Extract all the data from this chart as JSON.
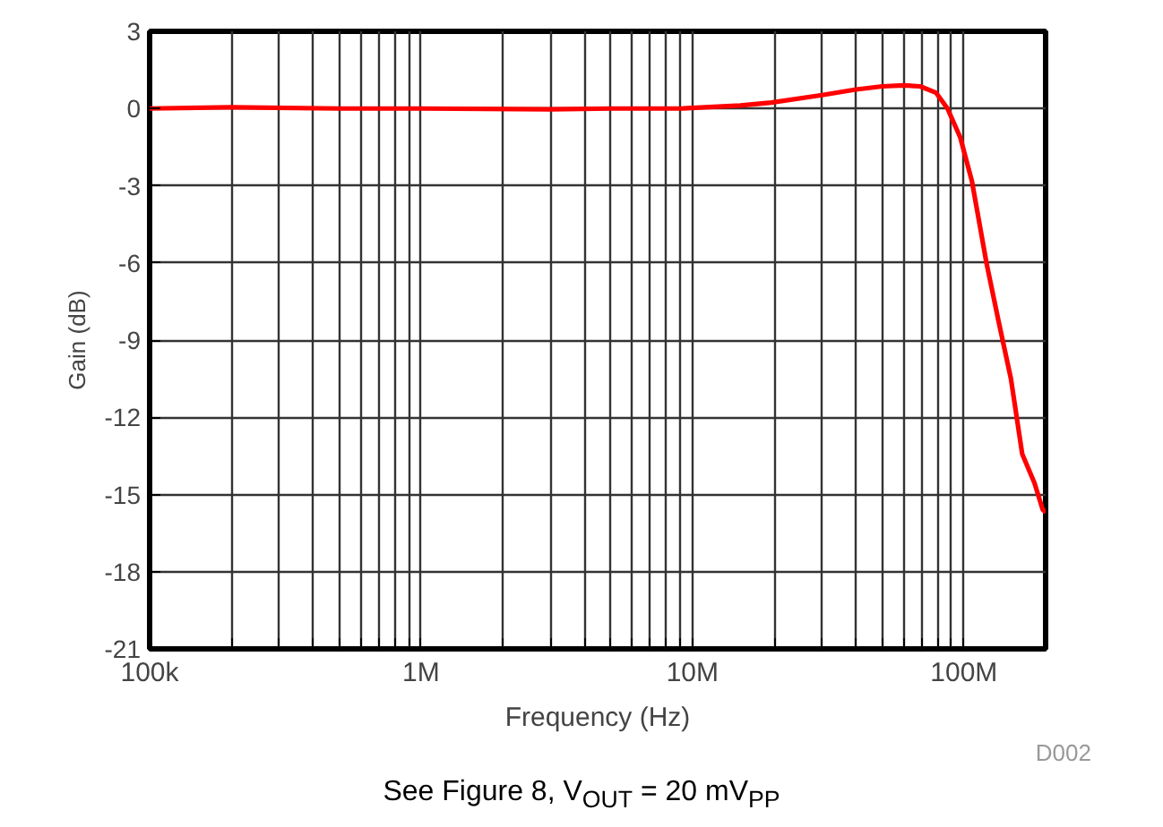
{
  "chart_data": {
    "type": "line",
    "xlabel": "Frequency (Hz)",
    "ylabel": "Gain (dB)",
    "log": "x",
    "grid": true,
    "marker": "none",
    "line_style": "solid",
    "xlim": [
      100000,
      200000000
    ],
    "ylim": [
      -21,
      3
    ],
    "xticks": [
      {
        "value": 100000,
        "label": "100k"
      },
      {
        "value": 200000,
        "label": null
      },
      {
        "value": 300000,
        "label": null
      },
      {
        "value": 400000,
        "label": null
      },
      {
        "value": 500000,
        "label": null
      },
      {
        "value": 600000,
        "label": null
      },
      {
        "value": 700000,
        "label": null
      },
      {
        "value": 800000,
        "label": null
      },
      {
        "value": 900000,
        "label": null
      },
      {
        "value": 1000000,
        "label": "1M"
      },
      {
        "value": 2000000,
        "label": null
      },
      {
        "value": 3000000,
        "label": null
      },
      {
        "value": 4000000,
        "label": null
      },
      {
        "value": 5000000,
        "label": null
      },
      {
        "value": 6000000,
        "label": null
      },
      {
        "value": 7000000,
        "label": null
      },
      {
        "value": 8000000,
        "label": null
      },
      {
        "value": 9000000,
        "label": null
      },
      {
        "value": 10000000,
        "label": "10M"
      },
      {
        "value": 20000000,
        "label": null
      },
      {
        "value": 30000000,
        "label": null
      },
      {
        "value": 40000000,
        "label": null
      },
      {
        "value": 50000000,
        "label": null
      },
      {
        "value": 60000000,
        "label": null
      },
      {
        "value": 70000000,
        "label": null
      },
      {
        "value": 80000000,
        "label": null
      },
      {
        "value": 90000000,
        "label": null
      },
      {
        "value": 100000000,
        "label": "100M"
      }
    ],
    "yticks": [
      3,
      0,
      -3,
      -6,
      -9,
      -12,
      -15,
      -18,
      -21
    ],
    "series": [
      {
        "color": "#ff0000",
        "x": [
          100000,
          200000,
          500000,
          1000000,
          3000000,
          5000000,
          9100000,
          15000000,
          19500000,
          30000000,
          40000000,
          50000000,
          60000000,
          69000000,
          79000000,
          87000000,
          97000000,
          107000000,
          121000000,
          134000000,
          149000000,
          164000000,
          182000000,
          195000000,
          200000000
        ],
        "values": [
          0,
          0.05,
          0,
          0,
          -0.03,
          0,
          0,
          0.12,
          0.23,
          0.52,
          0.74,
          0.86,
          0.9,
          0.86,
          0.61,
          0,
          -1.13,
          -2.82,
          -5.98,
          -8.24,
          -10.5,
          -13.43,
          -14.56,
          -15.58,
          -15.7
        ]
      }
    ],
    "annotations": [
      "D002",
      "See Figure 8, V$_{OUT}$ = 20 mV$_{PP}$"
    ]
  }
}
